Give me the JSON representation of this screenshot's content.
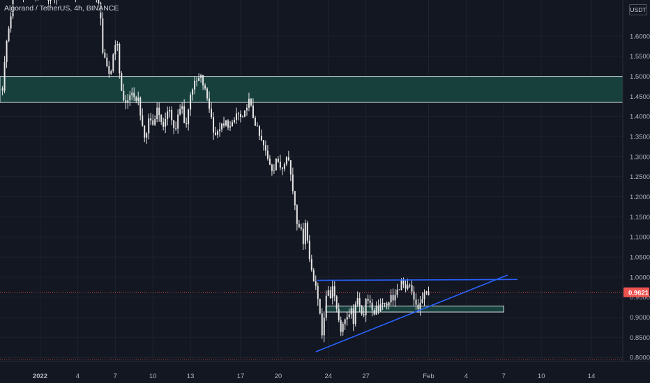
{
  "header": {
    "symbol_title": "Algorand / TetherUS, 4h, BINANCE",
    "currency": "USDT"
  },
  "colors": {
    "background": "#131722",
    "grid": "#1e222d",
    "up": "#26a69a",
    "down": "#ef5350",
    "candle": "#e6e6e6",
    "zone_fill": "#17403d",
    "zone_border": "#d8dde3",
    "trendline": "#2962ff",
    "price_tag": "#ef5350",
    "price_line": "#ef5350"
  },
  "chart_data": {
    "type": "candlestick",
    "title": "Algorand / TetherUS, 4h, BINANCE",
    "xlabel": "",
    "ylabel": "",
    "x_range_days": [
      -3.2,
      46.5
    ],
    "ylim": [
      0.79,
      1.69
    ],
    "grid": true,
    "x_ticks": [
      {
        "label": "2022",
        "day": 0,
        "bold": true
      },
      {
        "label": "4",
        "day": 3
      },
      {
        "label": "7",
        "day": 6
      },
      {
        "label": "10",
        "day": 9
      },
      {
        "label": "13",
        "day": 12
      },
      {
        "label": "17",
        "day": 16
      },
      {
        "label": "20",
        "day": 19
      },
      {
        "label": "24",
        "day": 23
      },
      {
        "label": "27",
        "day": 26
      },
      {
        "label": "Feb",
        "day": 31
      },
      {
        "label": "4",
        "day": 34
      },
      {
        "label": "7",
        "day": 37
      },
      {
        "label": "10",
        "day": 40
      },
      {
        "label": "14",
        "day": 44
      }
    ],
    "y_ticks": [
      "1.6000",
      "1.5500",
      "1.5000",
      "1.4500",
      "1.4000",
      "1.3500",
      "1.3000",
      "1.2500",
      "1.2000",
      "1.1500",
      "1.1000",
      "1.0500",
      "1.0000",
      "0.9500",
      "0.9000",
      "0.8500",
      "0.8000"
    ],
    "last_price": "0.9621",
    "last_price_value": 0.9621,
    "price_path": [
      [
        -3.0,
        1.47
      ],
      [
        -2.7,
        1.58
      ],
      [
        -2.3,
        1.66
      ],
      [
        -2.0,
        1.72
      ],
      [
        -1.2,
        1.7
      ],
      [
        0.0,
        1.71
      ],
      [
        1.0,
        1.69
      ],
      [
        2.0,
        1.72
      ],
      [
        3.0,
        1.7
      ],
      [
        4.0,
        1.72
      ],
      [
        4.8,
        1.67
      ],
      [
        5.0,
        1.56
      ],
      [
        5.3,
        1.52
      ],
      [
        5.6,
        1.5
      ],
      [
        5.9,
        1.57
      ],
      [
        6.1,
        1.6
      ],
      [
        6.3,
        1.52
      ],
      [
        6.6,
        1.44
      ],
      [
        6.9,
        1.43
      ],
      [
        7.2,
        1.46
      ],
      [
        7.5,
        1.44
      ],
      [
        7.8,
        1.45
      ],
      [
        8.0,
        1.41
      ],
      [
        8.2,
        1.36
      ],
      [
        8.4,
        1.34
      ],
      [
        8.7,
        1.4
      ],
      [
        9.0,
        1.38
      ],
      [
        9.3,
        1.42
      ],
      [
        9.6,
        1.4
      ],
      [
        9.9,
        1.36
      ],
      [
        10.1,
        1.41
      ],
      [
        10.3,
        1.43
      ],
      [
        10.5,
        1.39
      ],
      [
        10.8,
        1.36
      ],
      [
        11.0,
        1.4
      ],
      [
        11.3,
        1.43
      ],
      [
        11.5,
        1.39
      ],
      [
        11.7,
        1.38
      ],
      [
        12.0,
        1.46
      ],
      [
        12.3,
        1.48
      ],
      [
        12.6,
        1.49
      ],
      [
        12.8,
        1.5
      ],
      [
        13.1,
        1.47
      ],
      [
        13.3,
        1.45
      ],
      [
        13.6,
        1.41
      ],
      [
        13.8,
        1.37
      ],
      [
        14.1,
        1.35
      ],
      [
        14.4,
        1.38
      ],
      [
        14.6,
        1.37
      ],
      [
        14.9,
        1.39
      ],
      [
        15.1,
        1.37
      ],
      [
        15.4,
        1.38
      ],
      [
        15.7,
        1.41
      ],
      [
        15.9,
        1.4
      ],
      [
        16.2,
        1.39
      ],
      [
        16.5,
        1.43
      ],
      [
        16.7,
        1.44
      ],
      [
        16.9,
        1.41
      ],
      [
        17.1,
        1.39
      ],
      [
        17.3,
        1.37
      ],
      [
        17.6,
        1.34
      ],
      [
        17.8,
        1.33
      ],
      [
        18.0,
        1.31
      ],
      [
        18.2,
        1.29
      ],
      [
        18.4,
        1.28
      ],
      [
        18.6,
        1.26
      ],
      [
        18.8,
        1.3
      ],
      [
        19.0,
        1.28
      ],
      [
        19.3,
        1.27
      ],
      [
        19.5,
        1.29
      ],
      [
        19.7,
        1.31
      ],
      [
        19.9,
        1.28
      ],
      [
        20.1,
        1.23
      ],
      [
        20.3,
        1.19
      ],
      [
        20.5,
        1.14
      ],
      [
        20.7,
        1.13
      ],
      [
        21.0,
        1.09
      ],
      [
        21.2,
        1.15
      ],
      [
        21.4,
        1.06
      ],
      [
        21.6,
        1.03
      ],
      [
        21.8,
        1.0
      ],
      [
        22.0,
        0.98
      ],
      [
        22.2,
        0.93
      ],
      [
        22.4,
        0.9
      ],
      [
        22.5,
        0.86
      ],
      [
        22.8,
        0.94
      ],
      [
        23.0,
        0.97
      ],
      [
        23.2,
        0.95
      ],
      [
        23.4,
        0.99
      ],
      [
        23.6,
        0.93
      ],
      [
        23.8,
        0.9
      ],
      [
        24.0,
        0.87
      ],
      [
        24.2,
        0.88
      ],
      [
        24.4,
        0.91
      ],
      [
        24.6,
        0.89
      ],
      [
        24.8,
        0.92
      ],
      [
        25.0,
        0.89
      ],
      [
        25.2,
        0.93
      ],
      [
        25.4,
        0.95
      ],
      [
        25.6,
        0.92
      ],
      [
        25.8,
        0.9
      ],
      [
        26.0,
        0.94
      ],
      [
        26.2,
        0.95
      ],
      [
        26.4,
        0.92
      ],
      [
        26.6,
        0.9
      ],
      [
        26.8,
        0.93
      ],
      [
        27.0,
        0.92
      ],
      [
        27.2,
        0.94
      ],
      [
        27.4,
        0.94
      ],
      [
        27.6,
        0.92
      ],
      [
        27.8,
        0.94
      ],
      [
        28.0,
        0.95
      ],
      [
        28.2,
        0.94
      ],
      [
        28.4,
        0.96
      ],
      [
        28.6,
        0.97
      ],
      [
        28.8,
        0.99
      ],
      [
        29.0,
        0.98
      ],
      [
        29.2,
        0.96
      ],
      [
        29.4,
        0.98
      ],
      [
        29.6,
        0.97
      ],
      [
        29.8,
        0.94
      ],
      [
        30.0,
        0.93
      ],
      [
        30.2,
        0.92
      ],
      [
        30.4,
        0.94
      ],
      [
        30.6,
        0.95
      ],
      [
        30.8,
        0.96
      ],
      [
        31.0,
        0.9621
      ]
    ],
    "zones": [
      {
        "from_day": -3.2,
        "to_day": 46.5,
        "top": 1.5,
        "bottom": 1.435
      },
      {
        "from_day": 22.8,
        "to_day": 37.0,
        "top": 0.928,
        "bottom": 0.913
      }
    ],
    "lines": [
      {
        "x1": 22.0,
        "y1": 0.814,
        "x2": 37.3,
        "y2": 1.005
      },
      {
        "x1": 22.1,
        "y1": 0.992,
        "x2": 38.1,
        "y2": 0.994
      }
    ],
    "dotted_levels": [
      0.9621,
      0.795
    ]
  }
}
